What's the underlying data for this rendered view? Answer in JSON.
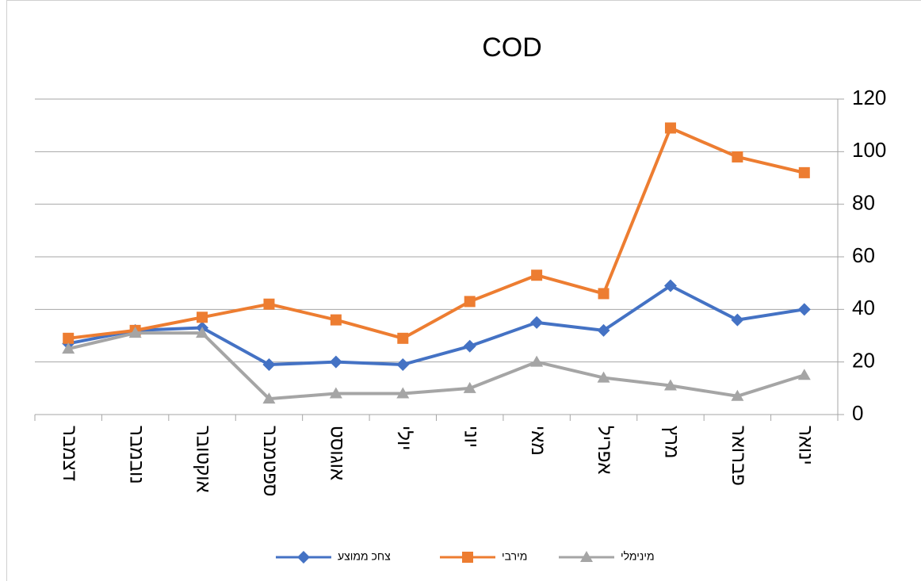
{
  "chart_data": {
    "type": "line",
    "title": "COD",
    "categories": [
      "ינואר",
      "פברואר",
      "מרץ",
      "אפריל",
      "מאי",
      "יוני",
      "יולי",
      "אוגוסט",
      "ספטמבר",
      "אוקטובר",
      "נובמבר",
      "דצמבר"
    ],
    "x_reversed": true,
    "series": [
      {
        "name": "צחכ ממוצע",
        "color": "#4472c4",
        "marker": "diamond",
        "values": [
          40,
          36,
          49,
          32,
          35,
          26,
          19,
          20,
          19,
          33,
          32,
          27
        ]
      },
      {
        "name": "מירבי",
        "color": "#ed7d31",
        "marker": "square",
        "values": [
          92,
          98,
          109,
          46,
          53,
          43,
          29,
          36,
          42,
          37,
          32,
          29
        ]
      },
      {
        "name": "מינימלי",
        "color": "#a5a5a5",
        "marker": "triangle",
        "values": [
          15,
          7,
          11,
          14,
          20,
          10,
          8,
          8,
          6,
          31,
          31,
          25
        ]
      }
    ],
    "ylim": [
      0,
      120
    ],
    "yticks": [
      0,
      20,
      40,
      60,
      80,
      100,
      120
    ],
    "yaxis_side": "right",
    "grid": true,
    "legend": "bottom"
  }
}
